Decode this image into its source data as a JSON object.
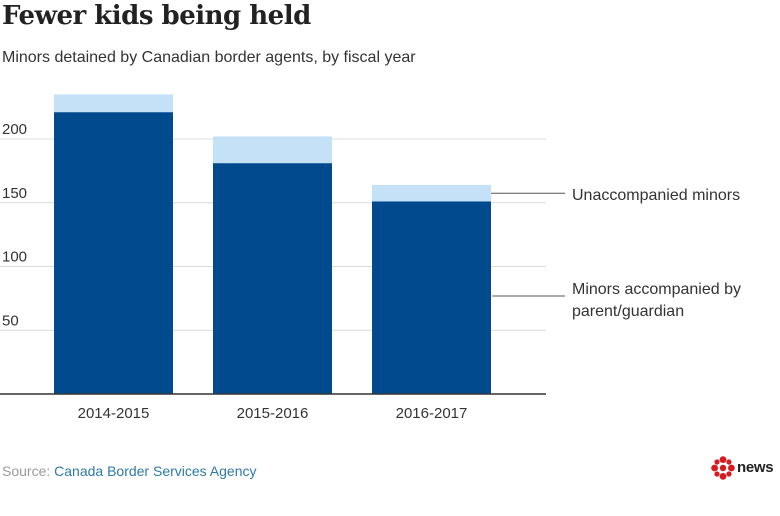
{
  "title": "Fewer kids being held",
  "subtitle": "Minors detained by Canadian border agents, by fiscal year",
  "source": {
    "label": "Source: ",
    "org": "Canada Border Services Agency"
  },
  "logo": {
    "word": "news",
    "mark": "cbc-gem-icon"
  },
  "colors": {
    "accompanied": "#004a8d",
    "unaccompanied": "#c4e1f8",
    "grid": "#dcdcdc",
    "axis": "#333333"
  },
  "chart_data": {
    "type": "bar",
    "stacked": true,
    "categories": [
      "2014-2015",
      "2015-2016",
      "2016-2017"
    ],
    "series": [
      {
        "name": "Minors accompanied by parent/guardian",
        "values": [
          221,
          181,
          151
        ]
      },
      {
        "name": "Unaccompanied minors",
        "values": [
          14,
          21,
          13
        ]
      }
    ],
    "yticks": [
      50,
      100,
      150,
      200
    ],
    "ylim": [
      0,
      235
    ],
    "grid": true,
    "legend_labels": [
      "Unaccompanied minors",
      "Minors accompanied by parent/guardian"
    ]
  }
}
